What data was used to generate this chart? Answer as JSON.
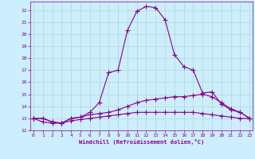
{
  "xlabel": "Windchill (Refroidissement éolien,°C)",
  "background_color": "#cceeff",
  "grid_color": "#b0d8cc",
  "line_color": "#880088",
  "x_values": [
    0,
    1,
    2,
    3,
    4,
    5,
    6,
    7,
    8,
    9,
    10,
    11,
    12,
    13,
    14,
    15,
    16,
    17,
    18,
    19,
    20,
    21,
    22,
    23
  ],
  "ylim": [
    12,
    22.7
  ],
  "xlim": [
    -0.3,
    23.3
  ],
  "yticks": [
    12,
    13,
    14,
    15,
    16,
    17,
    18,
    19,
    20,
    21,
    22
  ],
  "xticks": [
    0,
    1,
    2,
    3,
    4,
    5,
    6,
    7,
    8,
    9,
    10,
    11,
    12,
    13,
    14,
    15,
    16,
    17,
    18,
    19,
    20,
    21,
    22,
    23
  ],
  "series1": [
    13.0,
    13.0,
    12.7,
    12.6,
    13.0,
    13.1,
    13.5,
    14.3,
    16.8,
    17.0,
    20.3,
    21.9,
    22.3,
    22.2,
    21.2,
    18.3,
    17.3,
    17.0,
    15.1,
    15.2,
    14.2,
    13.7,
    13.5,
    13.0
  ],
  "series2": [
    13.0,
    13.0,
    12.7,
    12.6,
    13.0,
    13.1,
    13.3,
    13.4,
    13.5,
    13.7,
    14.0,
    14.3,
    14.5,
    14.6,
    14.7,
    14.8,
    14.8,
    14.9,
    15.0,
    14.8,
    14.3,
    13.8,
    13.5,
    13.0
  ],
  "series3": [
    13.0,
    12.7,
    12.6,
    12.6,
    12.8,
    12.9,
    13.0,
    13.1,
    13.2,
    13.3,
    13.4,
    13.5,
    13.5,
    13.5,
    13.5,
    13.5,
    13.5,
    13.5,
    13.4,
    13.3,
    13.2,
    13.1,
    13.0,
    13.0
  ]
}
